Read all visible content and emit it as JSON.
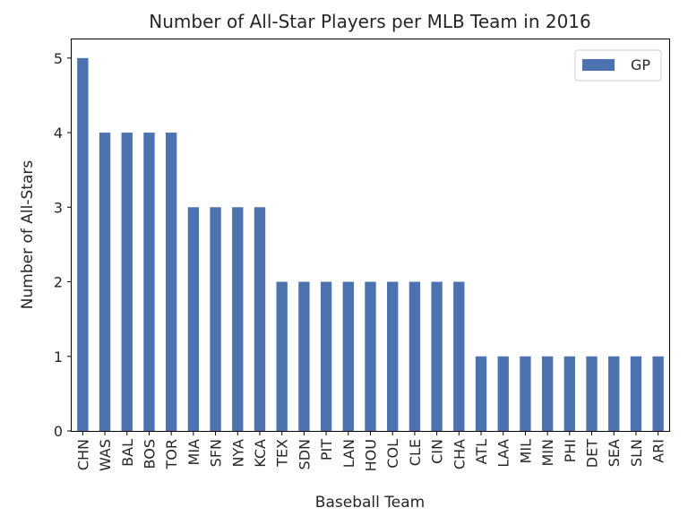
{
  "chart_data": {
    "type": "bar",
    "title": "Number of All-Star Players per MLB Team in 2016",
    "xlabel": "Baseball Team",
    "ylabel": "Number of All-Stars",
    "ylim": [
      0,
      5.25
    ],
    "yticks": [
      0,
      1,
      2,
      3,
      4,
      5
    ],
    "grid": false,
    "legend_position": "top-right",
    "categories": [
      "CHN",
      "WAS",
      "BAL",
      "BOS",
      "TOR",
      "MIA",
      "SFN",
      "NYA",
      "KCA",
      "TEX",
      "SDN",
      "PIT",
      "LAN",
      "HOU",
      "COL",
      "CLE",
      "CIN",
      "CHA",
      "ATL",
      "LAA",
      "MIL",
      "MIN",
      "PHI",
      "DET",
      "SEA",
      "SLN",
      "ARI"
    ],
    "series": [
      {
        "name": "GP",
        "color": "#4c72b0",
        "values": [
          5,
          4,
          4,
          4,
          4,
          3,
          3,
          3,
          3,
          2,
          2,
          2,
          2,
          2,
          2,
          2,
          2,
          2,
          1,
          1,
          1,
          1,
          1,
          1,
          1,
          1,
          1
        ]
      }
    ]
  }
}
